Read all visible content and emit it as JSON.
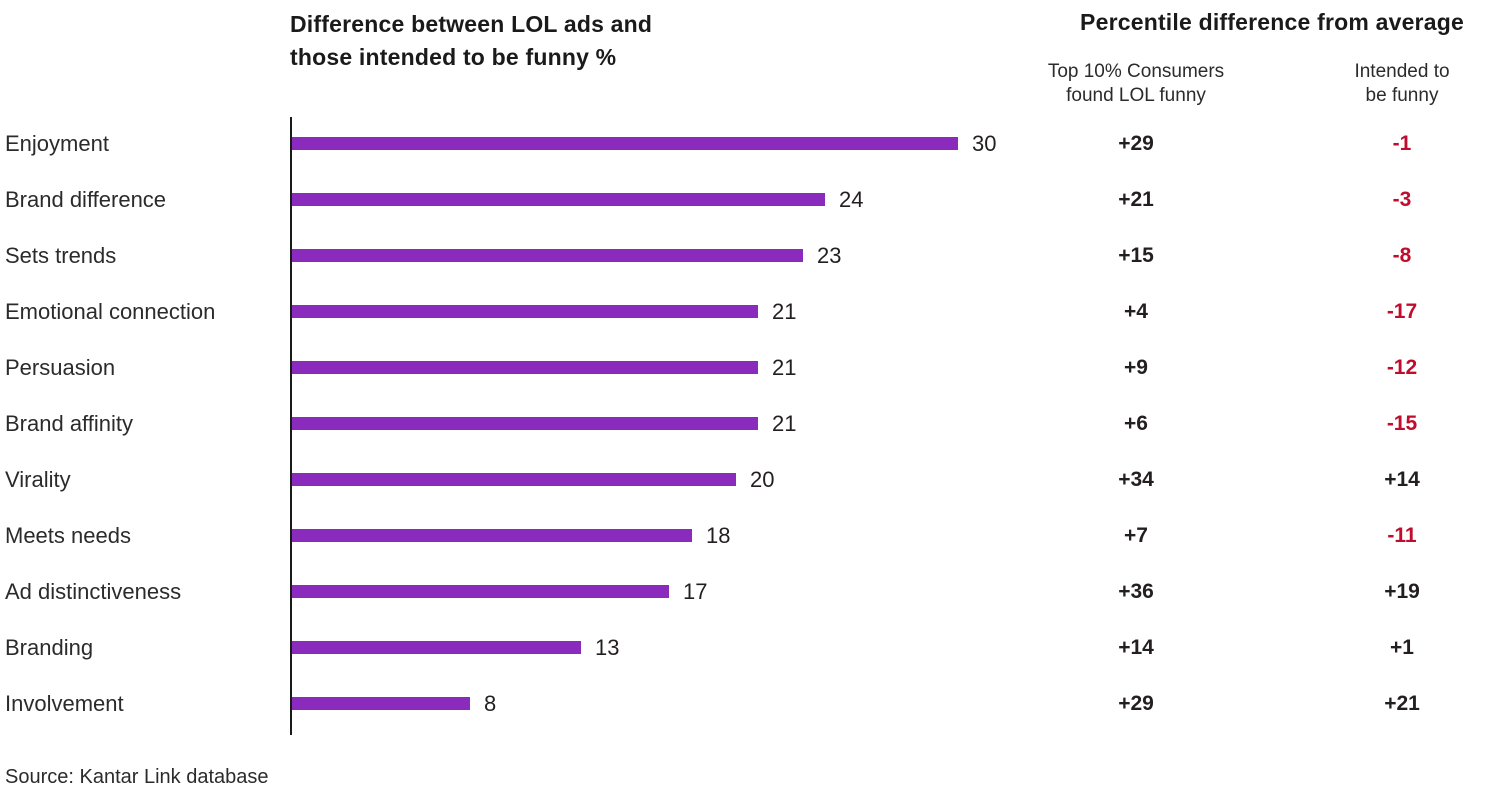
{
  "page": {
    "left_title_line1": "Difference between LOL ads and",
    "left_title_line2": "those intended to be funny %",
    "right_title": "Percentile difference from average",
    "col1_header_line1": "Top 10% Consumers",
    "col1_header_line2": "found LOL funny",
    "col2_header_line1": "Intended to",
    "col2_header_line2": "be funny",
    "source": "Source: Kantar Link database"
  },
  "colors": {
    "bar": "#8a2bbe",
    "axis": "#1a1a1a",
    "positive_text": "#231f20",
    "negative_text": "#c00c2d"
  },
  "chart_data": {
    "type": "bar",
    "orientation": "horizontal",
    "title": "Difference between LOL ads and those intended to be funny %",
    "right_table_title": "Percentile difference from average",
    "categories": [
      "Enjoyment",
      "Brand difference",
      "Sets trends",
      "Emotional connection",
      "Persuasion",
      "Brand affinity",
      "Virality",
      "Meets needs",
      "Ad distinctiveness",
      "Branding",
      "Involvement"
    ],
    "values": [
      30,
      24,
      23,
      21,
      21,
      21,
      20,
      18,
      17,
      13,
      8
    ],
    "series": [
      {
        "name": "Difference between LOL ads and those intended to be funny %",
        "values": [
          30,
          24,
          23,
          21,
          21,
          21,
          20,
          18,
          17,
          13,
          8
        ]
      },
      {
        "name": "Top 10% Consumers found LOL funny",
        "values": [
          "+29",
          "+21",
          "+15",
          "+4",
          "+9",
          "+6",
          "+34",
          "+7",
          "+36",
          "+14",
          "+29"
        ]
      },
      {
        "name": "Intended to be funny",
        "values": [
          "-1",
          "-3",
          "-8",
          "-17",
          "-12",
          "-15",
          "+14",
          "-11",
          "+19",
          "+1",
          "+21"
        ]
      }
    ],
    "xlim": [
      0,
      32
    ],
    "grid": false,
    "legend": "none",
    "source": "Source: Kantar Link database"
  }
}
